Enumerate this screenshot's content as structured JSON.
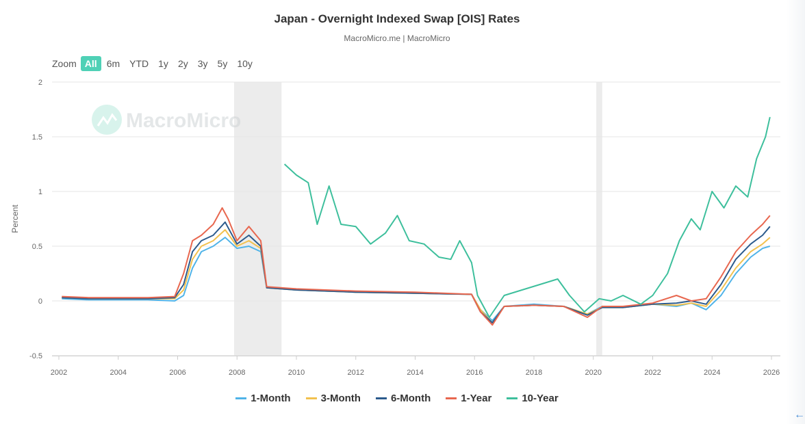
{
  "page": {
    "back_icon": "back-arrow-icon"
  },
  "header": {
    "title": "Japan - Overnight Indexed Swap [OIS] Rates",
    "subtitle": "MacroMicro.me | MacroMicro"
  },
  "zoom": {
    "label": "Zoom",
    "buttons": [
      "All",
      "6m",
      "YTD",
      "1y",
      "2y",
      "3y",
      "5y",
      "10y"
    ],
    "active": "All"
  },
  "watermark": {
    "text": "MacroMicro",
    "icon": "macromicro-logo-icon"
  },
  "chart_data": {
    "type": "line",
    "title": "Japan - Overnight Indexed Swap [OIS] Rates",
    "subtitle": "MacroMicro.me | MacroMicro",
    "xlabel": "",
    "ylabel": "Percent",
    "xlim": [
      2002,
      2026.3
    ],
    "ylim": [
      -0.5,
      2
    ],
    "x_ticks": [
      "2002",
      "2004",
      "2006",
      "2008",
      "2010",
      "2012",
      "2014",
      "2016",
      "2018",
      "2020",
      "2022",
      "2024",
      "2026"
    ],
    "y_ticks": [
      "-0.5",
      "0",
      "0.5",
      "1",
      "1.5",
      "2"
    ],
    "grid": true,
    "legend_position": "bottom-center",
    "shaded_periods": [
      [
        2007.9,
        2009.5
      ],
      [
        2020.1,
        2020.3
      ]
    ],
    "series": [
      {
        "name": "1-Month",
        "color": "#4fb3e8",
        "points": [
          [
            2002.1,
            0.02
          ],
          [
            2003,
            0.01
          ],
          [
            2004,
            0.01
          ],
          [
            2005,
            0.01
          ],
          [
            2005.9,
            0.0
          ],
          [
            2006.2,
            0.05
          ],
          [
            2006.5,
            0.3
          ],
          [
            2006.8,
            0.45
          ],
          [
            2007.2,
            0.5
          ],
          [
            2007.6,
            0.58
          ],
          [
            2008,
            0.48
          ],
          [
            2008.4,
            0.5
          ],
          [
            2008.8,
            0.45
          ],
          [
            2009,
            0.12
          ],
          [
            2010,
            0.1
          ],
          [
            2012,
            0.08
          ],
          [
            2014,
            0.07
          ],
          [
            2015.9,
            0.06
          ],
          [
            2016.2,
            -0.08
          ],
          [
            2016.6,
            -0.18
          ],
          [
            2017,
            -0.05
          ],
          [
            2018,
            -0.03
          ],
          [
            2019,
            -0.05
          ],
          [
            2019.8,
            -0.12
          ],
          [
            2020.3,
            -0.05
          ],
          [
            2021,
            -0.06
          ],
          [
            2022,
            -0.03
          ],
          [
            2022.8,
            -0.05
          ],
          [
            2023.3,
            -0.02
          ],
          [
            2023.8,
            -0.08
          ],
          [
            2024.3,
            0.05
          ],
          [
            2024.8,
            0.25
          ],
          [
            2025.3,
            0.4
          ],
          [
            2025.7,
            0.48
          ],
          [
            2025.95,
            0.5
          ]
        ]
      },
      {
        "name": "3-Month",
        "color": "#f2c14e",
        "points": [
          [
            2002.1,
            0.03
          ],
          [
            2003,
            0.02
          ],
          [
            2004,
            0.02
          ],
          [
            2005,
            0.02
          ],
          [
            2005.9,
            0.02
          ],
          [
            2006.2,
            0.1
          ],
          [
            2006.5,
            0.38
          ],
          [
            2006.8,
            0.5
          ],
          [
            2007.2,
            0.55
          ],
          [
            2007.6,
            0.65
          ],
          [
            2008,
            0.5
          ],
          [
            2008.4,
            0.55
          ],
          [
            2008.8,
            0.48
          ],
          [
            2009,
            0.12
          ],
          [
            2010,
            0.1
          ],
          [
            2012,
            0.08
          ],
          [
            2014,
            0.07
          ],
          [
            2015.9,
            0.06
          ],
          [
            2016.2,
            -0.08
          ],
          [
            2016.6,
            -0.2
          ],
          [
            2017,
            -0.05
          ],
          [
            2018,
            -0.04
          ],
          [
            2019,
            -0.05
          ],
          [
            2019.8,
            -0.12
          ],
          [
            2020.3,
            -0.06
          ],
          [
            2021,
            -0.06
          ],
          [
            2022,
            -0.03
          ],
          [
            2022.8,
            -0.04
          ],
          [
            2023.3,
            -0.02
          ],
          [
            2023.8,
            -0.05
          ],
          [
            2024.3,
            0.1
          ],
          [
            2024.8,
            0.3
          ],
          [
            2025.3,
            0.45
          ],
          [
            2025.7,
            0.52
          ],
          [
            2025.95,
            0.58
          ]
        ]
      },
      {
        "name": "6-Month",
        "color": "#2b5a8c",
        "points": [
          [
            2002.1,
            0.03
          ],
          [
            2003,
            0.02
          ],
          [
            2004,
            0.02
          ],
          [
            2005,
            0.02
          ],
          [
            2005.9,
            0.03
          ],
          [
            2006.2,
            0.15
          ],
          [
            2006.5,
            0.45
          ],
          [
            2006.8,
            0.55
          ],
          [
            2007.2,
            0.6
          ],
          [
            2007.6,
            0.72
          ],
          [
            2008,
            0.52
          ],
          [
            2008.4,
            0.6
          ],
          [
            2008.8,
            0.5
          ],
          [
            2009,
            0.12
          ],
          [
            2010,
            0.1
          ],
          [
            2012,
            0.08
          ],
          [
            2014,
            0.07
          ],
          [
            2015.9,
            0.06
          ],
          [
            2016.2,
            -0.1
          ],
          [
            2016.6,
            -0.2
          ],
          [
            2017,
            -0.05
          ],
          [
            2018,
            -0.04
          ],
          [
            2019,
            -0.05
          ],
          [
            2019.8,
            -0.13
          ],
          [
            2020.3,
            -0.06
          ],
          [
            2021,
            -0.06
          ],
          [
            2022,
            -0.03
          ],
          [
            2022.8,
            -0.02
          ],
          [
            2023.3,
            0.0
          ],
          [
            2023.8,
            -0.03
          ],
          [
            2024.3,
            0.15
          ],
          [
            2024.8,
            0.38
          ],
          [
            2025.3,
            0.52
          ],
          [
            2025.7,
            0.6
          ],
          [
            2025.95,
            0.68
          ]
        ]
      },
      {
        "name": "1-Year",
        "color": "#e8674f",
        "points": [
          [
            2002.1,
            0.04
          ],
          [
            2003,
            0.03
          ],
          [
            2004,
            0.03
          ],
          [
            2005,
            0.03
          ],
          [
            2005.9,
            0.04
          ],
          [
            2006.2,
            0.25
          ],
          [
            2006.5,
            0.55
          ],
          [
            2006.8,
            0.6
          ],
          [
            2007.2,
            0.7
          ],
          [
            2007.5,
            0.85
          ],
          [
            2007.7,
            0.75
          ],
          [
            2008,
            0.55
          ],
          [
            2008.4,
            0.68
          ],
          [
            2008.8,
            0.55
          ],
          [
            2009,
            0.13
          ],
          [
            2010,
            0.11
          ],
          [
            2012,
            0.09
          ],
          [
            2014,
            0.08
          ],
          [
            2015.9,
            0.06
          ],
          [
            2016.2,
            -0.1
          ],
          [
            2016.6,
            -0.22
          ],
          [
            2017,
            -0.05
          ],
          [
            2018,
            -0.04
          ],
          [
            2019,
            -0.05
          ],
          [
            2019.8,
            -0.15
          ],
          [
            2020.3,
            -0.05
          ],
          [
            2021,
            -0.05
          ],
          [
            2022,
            -0.02
          ],
          [
            2022.8,
            0.05
          ],
          [
            2023.3,
            0.0
          ],
          [
            2023.8,
            0.02
          ],
          [
            2024.3,
            0.22
          ],
          [
            2024.8,
            0.45
          ],
          [
            2025.3,
            0.6
          ],
          [
            2025.7,
            0.7
          ],
          [
            2025.95,
            0.78
          ]
        ]
      },
      {
        "name": "10-Year",
        "color": "#3dbf9c",
        "points": [
          [
            2009.6,
            1.25
          ],
          [
            2010,
            1.15
          ],
          [
            2010.4,
            1.08
          ],
          [
            2010.7,
            0.7
          ],
          [
            2011.1,
            1.05
          ],
          [
            2011.5,
            0.7
          ],
          [
            2012,
            0.68
          ],
          [
            2012.5,
            0.52
          ],
          [
            2013,
            0.62
          ],
          [
            2013.4,
            0.78
          ],
          [
            2013.8,
            0.55
          ],
          [
            2014.3,
            0.52
          ],
          [
            2014.8,
            0.4
          ],
          [
            2015.2,
            0.38
          ],
          [
            2015.5,
            0.55
          ],
          [
            2015.9,
            0.35
          ],
          [
            2016.1,
            0.05
          ],
          [
            2016.5,
            -0.15
          ],
          [
            2017,
            0.05
          ],
          [
            2017.6,
            0.1
          ],
          [
            2018.2,
            0.15
          ],
          [
            2018.8,
            0.2
          ],
          [
            2019.2,
            0.05
          ],
          [
            2019.7,
            -0.1
          ],
          [
            2020.2,
            0.02
          ],
          [
            2020.6,
            0.0
          ],
          [
            2021,
            0.05
          ],
          [
            2021.6,
            -0.03
          ],
          [
            2022,
            0.05
          ],
          [
            2022.5,
            0.25
          ],
          [
            2022.9,
            0.55
          ],
          [
            2023.3,
            0.75
          ],
          [
            2023.6,
            0.65
          ],
          [
            2024,
            1.0
          ],
          [
            2024.4,
            0.85
          ],
          [
            2024.8,
            1.05
          ],
          [
            2025.2,
            0.95
          ],
          [
            2025.5,
            1.3
          ],
          [
            2025.8,
            1.5
          ],
          [
            2025.95,
            1.68
          ]
        ]
      }
    ]
  }
}
